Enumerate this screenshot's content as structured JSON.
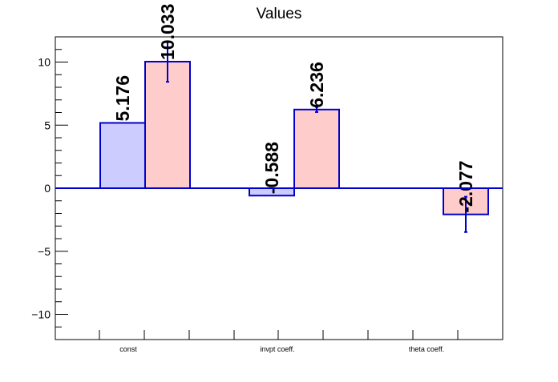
{
  "chart_data": {
    "type": "bar",
    "title": "Values",
    "xlabel": "",
    "ylabel": "",
    "ylim": [
      -12,
      12
    ],
    "yticks": [
      -10,
      -5,
      0,
      5,
      10
    ],
    "ytick_labels": [
      "−10",
      "−5",
      "0",
      "5",
      "10"
    ],
    "categories": [
      "const",
      "invpt coeff.",
      "theta coeff."
    ],
    "series": [
      {
        "values": [
          5.176,
          -0.588,
          null
        ],
        "labels": [
          "5.176",
          "-0.588",
          ""
        ],
        "errors": [
          0,
          0,
          null
        ],
        "fill": "#ccccff",
        "edge": "#0000cc"
      },
      {
        "values": [
          10.033,
          6.236,
          -2.077
        ],
        "labels": [
          "10.033",
          "6.236",
          "-2.077"
        ],
        "errors": [
          1.6,
          0.2,
          1.4
        ],
        "fill": "#ffcccc",
        "edge": "#0000cc"
      }
    ],
    "grid": false,
    "legend": "none"
  }
}
